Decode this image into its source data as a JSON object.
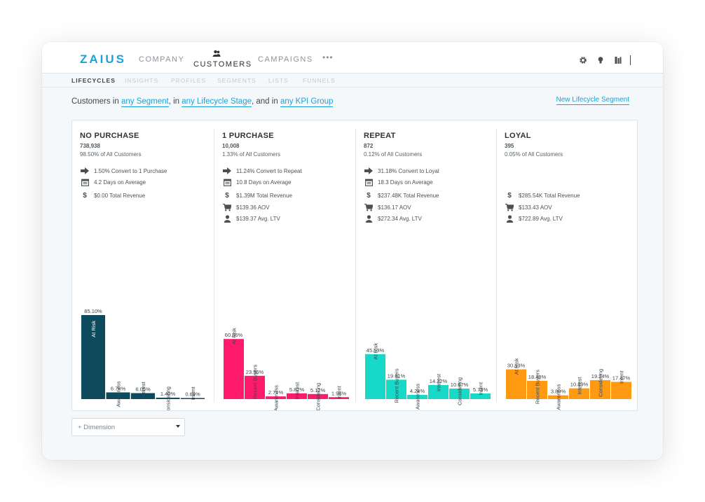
{
  "app": {
    "logo": "ZAIUS",
    "nav": {
      "company": "COMPANY",
      "customers": "CUSTOMERS",
      "campaigns": "CAMPAIGNS",
      "more": "•••"
    },
    "icons": [
      "gear-icon",
      "lightbulb-icon",
      "building-icon"
    ]
  },
  "subnav": [
    "LIFECYCLES",
    "INSIGHTS",
    "PROFILES",
    "SEGMENTS",
    "LISTS",
    "FUNNELS"
  ],
  "filter": {
    "prefix": "Customers in",
    "segment": "any Segment",
    "mid1": ", in",
    "stage": "any Lifecycle Stage",
    "mid2": ", and in",
    "kpi": "any KPI Group"
  },
  "new_segment": "New Lifecycle Segment",
  "dimension_select": "+ Dimension",
  "stages": [
    {
      "title": "NO PURCHASE",
      "count": "738,938",
      "pct": "98.50% of All Customers",
      "stats": [
        {
          "icon": "arrow-right-icon",
          "text": "1.50% Convert to 1 Purchase"
        },
        {
          "icon": "calendar-icon",
          "text": "4.2 Days on Average"
        },
        {
          "icon": "dollar-icon",
          "text": "$0.00 Total Revenue"
        }
      ]
    },
    {
      "title": "1 PURCHASE",
      "count": "10,008",
      "pct": "1.33% of All Customers",
      "stats": [
        {
          "icon": "arrow-right-icon",
          "text": "11.24% Convert to Repeat"
        },
        {
          "icon": "calendar-icon",
          "text": "10.8 Days on Average"
        },
        {
          "icon": "dollar-icon",
          "text": "$1.39M Total Revenue"
        },
        {
          "icon": "cart-icon",
          "text": "$139.36 AOV"
        },
        {
          "icon": "person-icon",
          "text": "$139.37 Avg. LTV"
        }
      ]
    },
    {
      "title": "REPEAT",
      "count": "872",
      "pct": "0.12% of All Customers",
      "stats": [
        {
          "icon": "arrow-right-icon",
          "text": "31.18% Convert to Loyal"
        },
        {
          "icon": "calendar-icon",
          "text": "18.3 Days on Average"
        },
        {
          "icon": "dollar-icon",
          "text": "$237.48K Total Revenue"
        },
        {
          "icon": "cart-icon",
          "text": "$136.17 AOV"
        },
        {
          "icon": "person-icon",
          "text": "$272.34 Avg. LTV"
        }
      ]
    },
    {
      "title": "LOYAL",
      "count": "395",
      "pct": "0.05% of All Customers",
      "stats": [
        {
          "icon": "blank",
          "text": ""
        },
        {
          "icon": "blank",
          "text": ""
        },
        {
          "icon": "dollar-icon",
          "text": "$285.54K Total Revenue"
        },
        {
          "icon": "cart-icon",
          "text": "$133.43 AOV"
        },
        {
          "icon": "person-icon",
          "text": "$722.89 Avg. LTV"
        }
      ]
    }
  ],
  "chart_data": [
    {
      "type": "bar",
      "stage": "NO PURCHASE",
      "color": "#0e4a5e",
      "categories": [
        "At Risk",
        "Awareness",
        "Interest",
        "Considering",
        "Intent"
      ],
      "values": [
        85.1,
        6.76,
        6.05,
        1.4,
        0.69
      ],
      "labels": [
        "85.10%",
        "6.76%",
        "6.05%",
        "1.40%",
        "0.69%"
      ]
    },
    {
      "type": "bar",
      "stage": "1 PURCHASE",
      "color": "#ff1a6b",
      "categories": [
        "At Risk",
        "Recent Buyers",
        "Awareness",
        "Interest",
        "Considering",
        "Intent"
      ],
      "values": [
        60.86,
        23.56,
        2.71,
        5.82,
        5.12,
        1.94
      ],
      "labels": [
        "60.86%",
        "23.56%",
        "2.71%",
        "5.82%",
        "5.12%",
        "1.94%"
      ]
    },
    {
      "type": "bar",
      "stage": "REPEAT",
      "color": "#16d9c7",
      "categories": [
        "At Risk",
        "Recent Buyers",
        "Awareness",
        "Interest",
        "Considering",
        "Intent"
      ],
      "values": [
        45.53,
        19.61,
        4.24,
        14.22,
        10.67,
        5.73
      ],
      "labels": [
        "45.53%",
        "19.61%",
        "4.24%",
        "14.22%",
        "10.67%",
        "5.73%"
      ]
    },
    {
      "type": "bar",
      "stage": "LOYAL",
      "color": "#ff9a12",
      "categories": [
        "At Risk",
        "Recent Buyers",
        "Awareness",
        "Interest",
        "Considering",
        "Intent"
      ],
      "values": [
        30.13,
        18.48,
        3.8,
        10.89,
        19.24,
        17.47
      ],
      "labels": [
        "30.13%",
        "18.48%",
        "3.80%",
        "10.89%",
        "19.24%",
        "17.47%"
      ]
    }
  ]
}
